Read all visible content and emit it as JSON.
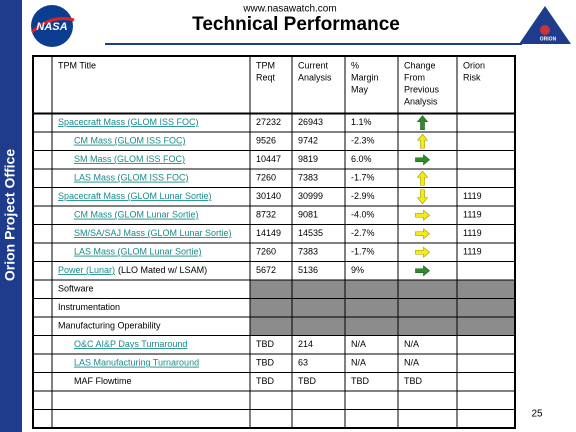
{
  "header": {
    "url": "www.nasawatch.com",
    "title": "Technical Performance",
    "logo": "NASA",
    "side_label": "Orion Project Office",
    "orion_logo": "ORION",
    "page_number": "25"
  },
  "table": {
    "columns": [
      [
        "TPM Title"
      ],
      [
        "TPM",
        "Reqt"
      ],
      [
        "Current",
        "Analysis"
      ],
      [
        "%",
        "Margin",
        "May"
      ],
      [
        "Change",
        "From",
        "Previous",
        "Analysis"
      ],
      [
        "Orion",
        "Risk"
      ]
    ],
    "rows": [
      {
        "title": "Spacecraft Mass (GLOM ISS FOC)",
        "style": "link",
        "reqt": 27232,
        "current": 26943,
        "margin": "1.1%"
      },
      {
        "title": "CM Mass (GLOM ISS FOC)",
        "style": "link",
        "indent": true,
        "reqt": 9526,
        "current": 9742,
        "margin": "-2.3%"
      },
      {
        "title": "SM Mass (GLOM ISS FOC)",
        "style": "link",
        "indent": true,
        "reqt": 10447,
        "current": 9819,
        "margin": "6.0%"
      },
      {
        "title": "LAS Mass (GLOM ISS FOC)",
        "style": "link",
        "indent": true,
        "reqt": 7260,
        "current": 7383,
        "margin": "-1.7%"
      },
      {
        "title": "Spacecraft Mass (GLOM Lunar Sortie)",
        "style": "link",
        "reqt": 30140,
        "current": 30999,
        "margin": "-2.9%",
        "risk": 1119
      },
      {
        "title": "CM Mass (GLOM Lunar Sortie)",
        "style": "link",
        "indent": true,
        "reqt": 8732,
        "current": 9081,
        "margin": "-4.0%",
        "risk": 1119
      },
      {
        "title": "SM/SA/SAJ Mass (GLOM Lunar Sortie)",
        "style": "link",
        "indent": true,
        "reqt": 14149,
        "current": 14535,
        "margin": "-2.7%",
        "risk": 1119
      },
      {
        "title": "LAS Mass (GLOM Lunar Sortie)",
        "style": "link",
        "indent": true,
        "reqt": 7260,
        "current": 7383,
        "margin": "-1.7%",
        "risk": 1119
      },
      {
        "title": "Power (Lunar)",
        "note": "(LLO Mated w/ LSAM)",
        "style": "link",
        "reqt": 5672,
        "current": 5136,
        "margin": "9%"
      },
      {
        "title": "Software",
        "shaded": true
      },
      {
        "title": "Instrumentation",
        "shaded": true
      },
      {
        "title": "Manufacturing Operability",
        "shaded": true
      },
      {
        "title": "O&C AI&P Days Turnaround",
        "style": "link",
        "indent": true,
        "reqt": "TBD",
        "current": 214,
        "margin": "N/A",
        "change": "N/A"
      },
      {
        "title": "LAS Manufacturing Turnaround",
        "style": "link",
        "indent": true,
        "reqt": "TBD",
        "current": 63,
        "margin": "N/A",
        "change": "N/A"
      },
      {
        "title": "MAF Flowtime",
        "indent": true,
        "reqt": "TBD",
        "current": "TBD",
        "margin": "TBD",
        "change": "TBD"
      }
    ]
  }
}
